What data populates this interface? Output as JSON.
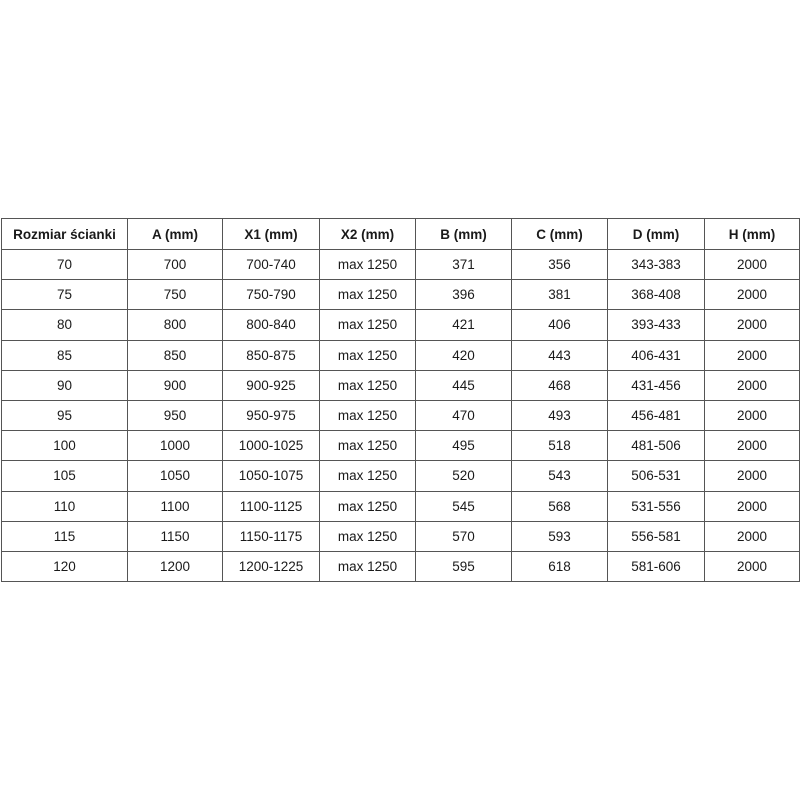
{
  "table": {
    "headers": [
      "Rozmiar ścianki",
      "A (mm)",
      "X1 (mm)",
      "X2 (mm)",
      "B (mm)",
      "C (mm)",
      "D (mm)",
      "H (mm)"
    ],
    "rows": [
      [
        "70",
        "700",
        "700-740",
        "max 1250",
        "371",
        "356",
        "343-383",
        "2000"
      ],
      [
        "75",
        "750",
        "750-790",
        "max 1250",
        "396",
        "381",
        "368-408",
        "2000"
      ],
      [
        "80",
        "800",
        "800-840",
        "max 1250",
        "421",
        "406",
        "393-433",
        "2000"
      ],
      [
        "85",
        "850",
        "850-875",
        "max 1250",
        "420",
        "443",
        "406-431",
        "2000"
      ],
      [
        "90",
        "900",
        "900-925",
        "max 1250",
        "445",
        "468",
        "431-456",
        "2000"
      ],
      [
        "95",
        "950",
        "950-975",
        "max 1250",
        "470",
        "493",
        "456-481",
        "2000"
      ],
      [
        "100",
        "1000",
        "1000-1025",
        "max 1250",
        "495",
        "518",
        "481-506",
        "2000"
      ],
      [
        "105",
        "1050",
        "1050-1075",
        "max 1250",
        "520",
        "543",
        "506-531",
        "2000"
      ],
      [
        "110",
        "1100",
        "1100-1125",
        "max 1250",
        "545",
        "568",
        "531-556",
        "2000"
      ],
      [
        "115",
        "1150",
        "1150-1175",
        "max 1250",
        "570",
        "593",
        "556-581",
        "2000"
      ],
      [
        "120",
        "1200",
        "1200-1225",
        "max 1250",
        "595",
        "618",
        "581-606",
        "2000"
      ]
    ]
  }
}
